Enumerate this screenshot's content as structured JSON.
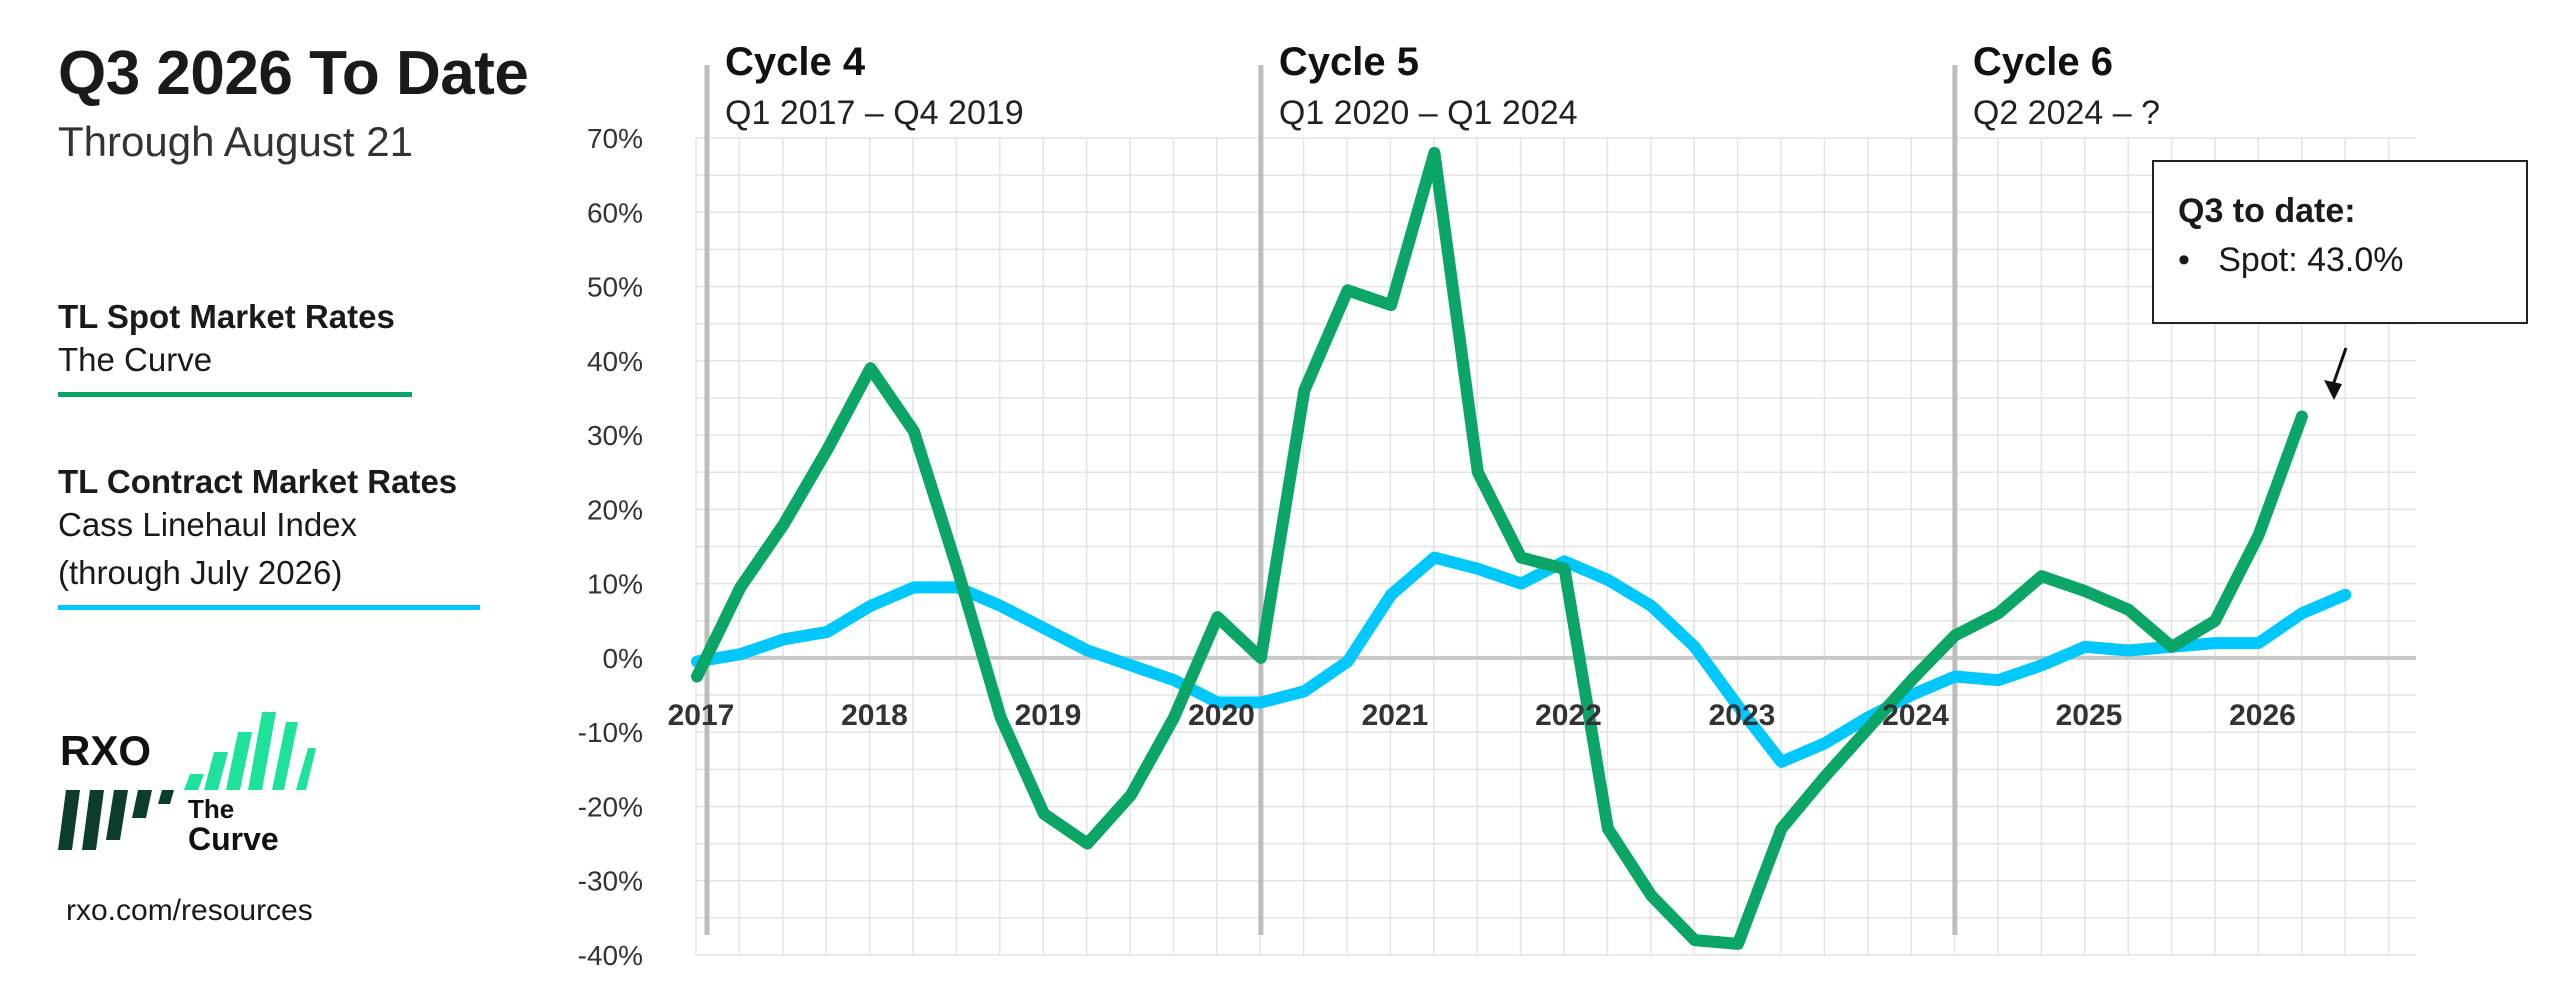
{
  "header": {
    "title": "Q3 2026 To Date",
    "subtitle": "Through August 21"
  },
  "legend": [
    {
      "heading": "TL Spot Market Rates",
      "sub": [
        "The Curve"
      ],
      "color": "#0aa567"
    },
    {
      "heading": "TL Contract Market Rates",
      "sub": [
        "Cass Linehaul Index",
        "(through July 2026)"
      ],
      "color": "#00c8ff"
    }
  ],
  "brand": {
    "logo_text": "RXO",
    "curve_text_1": "The",
    "curve_text_2": "Curve",
    "url": "rxo.com/resources"
  },
  "callout": {
    "title": "Q3 to date:",
    "bullet": "•",
    "item": "Spot: 43.0%"
  },
  "chart_data": {
    "type": "line",
    "x_ticks": [
      "2017",
      "2018",
      "2019",
      "2020",
      "2021",
      "2022",
      "2023",
      "2024",
      "2025",
      "2026"
    ],
    "y_ticks": [
      "70%",
      "60%",
      "50%",
      "40%",
      "30%",
      "20%",
      "10%",
      "0%",
      "-10%",
      "-20%",
      "-30%",
      "-40%"
    ],
    "ylim": [
      -40,
      70
    ],
    "cycles": [
      {
        "name": "Cycle 4",
        "range": "Q1 2017 – Q4 2019",
        "start_x": 2017.0
      },
      {
        "name": "Cycle 5",
        "range": "Q1 2020 – Q1 2024",
        "start_x": 2020.25
      },
      {
        "name": "Cycle 6",
        "range": "Q2 2024 – ?",
        "start_x": 2024.25
      }
    ],
    "series": [
      {
        "color": "#0aa567",
        "x": [
          2017.0,
          2017.25,
          2017.5,
          2017.75,
          2018.0,
          2018.25,
          2018.5,
          2018.75,
          2019.0,
          2019.25,
          2019.5,
          2019.75,
          2020.0,
          2020.25,
          2020.5,
          2020.75,
          2021.0,
          2021.25,
          2021.5,
          2021.75,
          2022.0,
          2022.25,
          2022.5,
          2022.75,
          2023.0,
          2023.25,
          2023.5,
          2023.75,
          2024.0,
          2024.25,
          2024.5,
          2024.75,
          2025.0,
          2025.25,
          2025.5,
          2025.75,
          2026.0,
          2026.25
        ],
        "y": [
          -2.5,
          9.5,
          18,
          28,
          39,
          30.5,
          12,
          -8,
          -21,
          -25,
          -18.5,
          -8,
          5.5,
          0,
          36,
          49.5,
          47.5,
          68,
          25,
          13.5,
          12,
          -23,
          -32,
          -38,
          -38.5,
          -23,
          -16,
          -9.5,
          -3,
          3,
          6,
          11,
          9,
          6.5,
          1.5,
          5,
          16.5,
          32.5
        ]
      },
      {
        "color": "#00c8ff",
        "x": [
          2017.0,
          2017.25,
          2017.5,
          2017.75,
          2018.0,
          2018.25,
          2018.5,
          2018.75,
          2019.0,
          2019.25,
          2019.5,
          2019.75,
          2020.0,
          2020.25,
          2020.5,
          2020.75,
          2021.0,
          2021.25,
          2021.5,
          2021.75,
          2022.0,
          2022.25,
          2022.5,
          2022.75,
          2023.0,
          2023.25,
          2023.5,
          2023.75,
          2024.0,
          2024.25,
          2024.5,
          2024.75,
          2025.0,
          2025.25,
          2025.5,
          2025.75,
          2026.0,
          2026.25,
          2026.5
        ],
        "y": [
          -0.5,
          0.5,
          2.5,
          3.5,
          7,
          9.5,
          9.5,
          7,
          4,
          1,
          -1,
          -3,
          -6,
          -6,
          -4.5,
          -0.5,
          8.5,
          13.5,
          12,
          10,
          13,
          10.5,
          7,
          1.5,
          -6.5,
          -14,
          -11.5,
          -8,
          -5,
          -2.5,
          -3,
          -1,
          1.5,
          1,
          1.5,
          2,
          2,
          6,
          8.5
        ]
      }
    ]
  }
}
